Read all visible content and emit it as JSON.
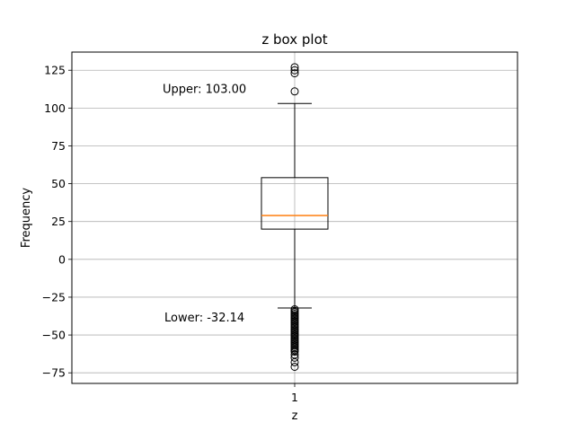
{
  "chart_data": {
    "type": "box",
    "title": "z box plot",
    "xlabel": "z",
    "ylabel": "Frequency",
    "x_categories": [
      "1"
    ],
    "ylim": [
      -82,
      137
    ],
    "yticks": [
      -75,
      -50,
      -25,
      0,
      25,
      50,
      75,
      100,
      125
    ],
    "ytick_labels": [
      "−75",
      "−50",
      "−25",
      "0",
      "25",
      "50",
      "75",
      "100",
      "125"
    ],
    "grid": "y",
    "box": {
      "q1": 20,
      "median": 29,
      "q3": 54,
      "whisker_low": -32.14,
      "whisker_high": 103.0,
      "outliers_high": [
        111,
        123,
        125,
        127
      ],
      "outliers_low": [
        -33,
        -34,
        -35,
        -36,
        -37,
        -38,
        -39,
        -40,
        -41,
        -42,
        -43,
        -44,
        -45,
        -46,
        -47,
        -48,
        -49,
        -50,
        -51,
        -52,
        -53,
        -54,
        -55,
        -56,
        -57,
        -58,
        -59,
        -60,
        -61,
        -63,
        -65,
        -68,
        -71
      ]
    },
    "annotations": [
      {
        "text": "Upper: 103.00",
        "y": 113
      },
      {
        "text": "Lower: -32.14",
        "y": -38
      }
    ],
    "colors": {
      "median": "#ff7f0e",
      "box": "#000000",
      "grid": "#b0b0b0"
    }
  }
}
